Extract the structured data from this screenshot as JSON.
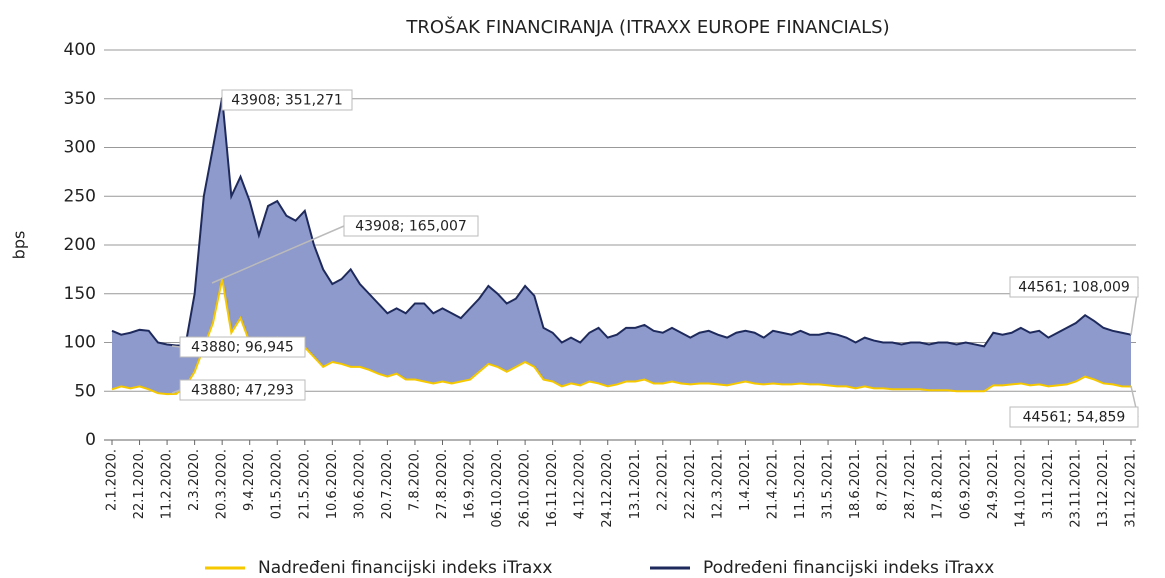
{
  "chart_data": {
    "type": "line",
    "title": "TROŠAK FINANCIRANJA (ITRAXX EUROPE FINANCIALS)",
    "y_label": "bps",
    "categories": [
      "2.1.2020.",
      null,
      null,
      "22.1.2020.",
      null,
      null,
      "11.2.2020.",
      null,
      null,
      "2.3.2020.",
      null,
      null,
      "20.3.2020.",
      null,
      null,
      "9.4.2020.",
      null,
      null,
      "01.5.2020.",
      null,
      null,
      "21.5.2020.",
      null,
      null,
      "10.6.2020.",
      null,
      null,
      "30.6.2020.",
      null,
      null,
      "20.7.2020.",
      null,
      null,
      "7.8.2020.",
      null,
      null,
      "27.8.2020.",
      null,
      null,
      "16.9.2020.",
      null,
      null,
      "06.10.2020.",
      null,
      null,
      "26.10.2020.",
      null,
      null,
      "16.11.2020.",
      null,
      null,
      "4.12.2020.",
      null,
      null,
      "24.12.2020.",
      null,
      null,
      "13.1.2021.",
      null,
      null,
      "2.2.2021.",
      null,
      null,
      "22.2.2021.",
      null,
      null,
      "12.3.2021.",
      null,
      null,
      "1.4.2021.",
      null,
      null,
      "21.4.2021.",
      null,
      null,
      "11.5.2021.",
      null,
      null,
      "31.5.2021.",
      null,
      null,
      "18.6.2021.",
      null,
      null,
      "8.7.2021.",
      null,
      null,
      "28.7.2021.",
      null,
      null,
      "17.8.2021.",
      null,
      null,
      "06.9.2021.",
      null,
      null,
      "24.9.2021.",
      null,
      null,
      "14.10.2021.",
      null,
      null,
      "3.11.2021.",
      null,
      null,
      "23.11.2021.",
      null,
      null,
      "13.12.2021.",
      null,
      null,
      "31.12.2021."
    ],
    "series": [
      {
        "name": "Nadređeni financijski indeks iTraxx",
        "color": "#f5c800",
        "values": [
          52,
          55,
          53,
          55,
          52,
          48,
          47,
          47.293,
          55,
          70,
          95,
          120,
          165.007,
          110,
          125,
          100,
          95,
          90,
          105,
          95,
          95,
          95,
          85,
          75,
          80,
          78,
          75,
          75,
          72,
          68,
          65,
          68,
          62,
          62,
          60,
          58,
          60,
          58,
          60,
          62,
          70,
          78,
          75,
          70,
          75,
          80,
          75,
          62,
          60,
          55,
          58,
          56,
          60,
          58,
          55,
          57,
          60,
          60,
          62,
          58,
          58,
          60,
          58,
          57,
          58,
          58,
          57,
          56,
          58,
          60,
          58,
          57,
          58,
          57,
          57,
          58,
          57,
          57,
          56,
          55,
          55,
          53,
          55,
          53,
          53,
          52,
          52,
          52,
          52,
          51,
          51,
          51,
          50,
          50,
          50,
          50,
          56,
          56,
          57,
          58,
          56,
          57,
          55,
          56,
          57,
          60,
          65,
          62,
          58,
          57,
          55,
          54.859
        ]
      },
      {
        "name": "Podređeni financijski indeks iTraxx",
        "color": "#1f2a5c",
        "values": [
          112,
          108,
          110,
          113,
          112,
          100,
          98,
          96.945,
          97,
          150,
          250,
          300,
          351.271,
          250,
          270,
          245,
          210,
          240,
          245,
          230,
          225,
          235,
          200,
          175,
          160,
          165,
          175,
          160,
          150,
          140,
          130,
          135,
          130,
          140,
          140,
          130,
          135,
          130,
          125,
          135,
          145,
          158,
          150,
          140,
          145,
          158,
          148,
          115,
          110,
          100,
          105,
          100,
          110,
          115,
          105,
          108,
          115,
          115,
          118,
          112,
          110,
          115,
          110,
          105,
          110,
          112,
          108,
          105,
          110,
          112,
          110,
          105,
          112,
          110,
          108,
          112,
          108,
          108,
          110,
          108,
          105,
          100,
          105,
          102,
          100,
          100,
          98,
          100,
          100,
          98,
          100,
          100,
          98,
          100,
          98,
          96,
          110,
          108,
          110,
          115,
          110,
          112,
          105,
          110,
          115,
          120,
          128,
          122,
          115,
          112,
          110,
          108.009
        ]
      }
    ],
    "band_color": "#8e99cc",
    "ylim": [
      0,
      400
    ],
    "yticks": [
      0,
      50,
      100,
      150,
      200,
      250,
      300,
      350,
      400
    ],
    "grid": true,
    "annotations": [
      "43908; 351,271",
      "43908; 165,007",
      "43880; 96,945",
      "43880; 47,293",
      "44561; 108,009",
      "44561; 54,859"
    ]
  }
}
